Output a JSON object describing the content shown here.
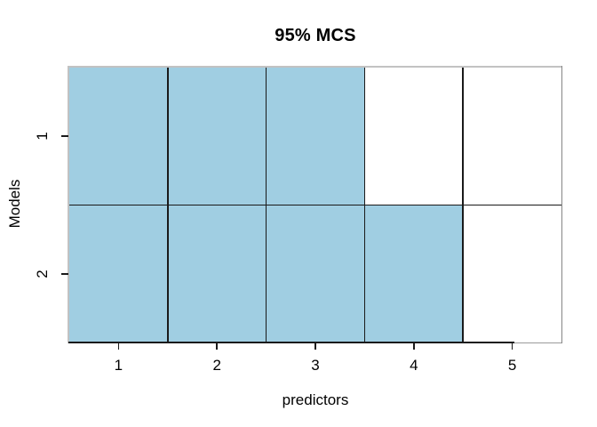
{
  "chart_data": {
    "type": "heatmap",
    "title": "95% MCS",
    "xlabel": "predictors",
    "ylabel": "Models",
    "x_ticks": [
      "1",
      "2",
      "3",
      "4",
      "5"
    ],
    "y_ticks": [
      "1",
      "2"
    ],
    "x_range": [
      0.5,
      5.5
    ],
    "y_range": [
      0.5,
      2.5
    ],
    "legend": "none",
    "grid": "cell-borders",
    "rows": [
      {
        "model": "1",
        "included": [
          true,
          true,
          true,
          false,
          false
        ]
      },
      {
        "model": "2",
        "included": [
          true,
          true,
          true,
          true,
          false
        ]
      }
    ],
    "colors": {
      "included": "#a0cee2",
      "excluded": "#ffffff",
      "grid_line": "#1a1a1a",
      "box": "#c2c2c2",
      "box_right": "#858585",
      "box_bottom": "#9a9a9a",
      "tick": "#1a1a1a"
    }
  }
}
